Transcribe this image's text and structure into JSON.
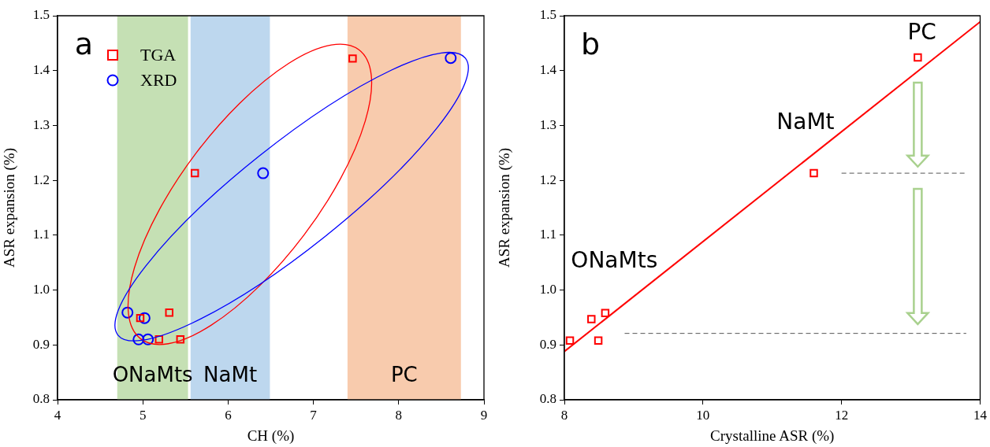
{
  "chart_data": [
    {
      "type": "scatter",
      "xlabel": "CH (%)",
      "ylabel": "ASR expansion (%)",
      "xlim": [
        4,
        9
      ],
      "xticks": [
        4,
        5,
        6,
        7,
        8,
        9
      ],
      "ylim": [
        0.8,
        1.5
      ],
      "yticks": [
        {
          "value": 0.8,
          "label": "0.8"
        },
        {
          "value": 0.9,
          "label": "0.9"
        },
        {
          "value": 1.0,
          "label": "1.0"
        },
        {
          "value": 1.1,
          "label": "1.1"
        },
        {
          "value": 1.2,
          "label": "1.2"
        },
        {
          "value": 1.3,
          "label": "1.3"
        },
        {
          "value": 1.4,
          "label": "1.4"
        },
        {
          "value": 1.5,
          "label": "1.5"
        }
      ],
      "grid": false,
      "legend": "top left",
      "series": [
        {
          "name": "TGA",
          "color": "#ff0000",
          "marker": "square",
          "x": [
            7.46,
            5.61,
            5.31,
            4.97,
            5.19,
            5.44
          ],
          "values": [
            1.422,
            1.213,
            0.959,
            0.949,
            0.91,
            0.91
          ]
        },
        {
          "name": "XRD",
          "color": "#0000ff",
          "marker": "circle",
          "x": [
            8.61,
            6.41,
            4.82,
            5.02,
            4.95,
            5.06
          ],
          "values": [
            1.423,
            1.213,
            0.959,
            0.949,
            0.91,
            0.91
          ]
        }
      ],
      "bands": [
        {
          "axis": "x",
          "from": 4.7,
          "to": 5.53,
          "label": "ONaMts",
          "color": "#c5e0b4"
        },
        {
          "axis": "x",
          "from": 5.56,
          "to": 6.49,
          "label": "NaMt",
          "color": "#bdd7ee"
        },
        {
          "axis": "x",
          "from": 7.4,
          "to": 8.73,
          "label": "PC",
          "color": "#f8cbad"
        }
      ],
      "annotations": [
        "a"
      ]
    },
    {
      "type": "scatter",
      "xlabel": "Crystalline ASR (%)",
      "ylabel": "ASR expansion (%)",
      "xlim": [
        8,
        14
      ],
      "xticks": [
        8,
        10,
        12,
        14
      ],
      "ylim": [
        0.8,
        1.5
      ],
      "yticks": [
        {
          "value": 0.8,
          "label": "0.8"
        },
        {
          "value": 0.9,
          "label": "0.9"
        },
        {
          "value": 1.0,
          "label": "1.0"
        },
        {
          "value": 1.1,
          "label": "1.1"
        },
        {
          "value": 1.2,
          "label": "1.2"
        },
        {
          "value": 1.3,
          "label": "1.3"
        },
        {
          "value": 1.4,
          "label": "1.4"
        },
        {
          "value": 1.5,
          "label": "1.5"
        }
      ],
      "grid": false,
      "marker": "square",
      "series": [
        {
          "color": "#ff0000",
          "x": [
            8.08,
            8.39,
            8.59,
            8.49,
            11.6,
            13.1
          ],
          "values": [
            0.908,
            0.947,
            0.958,
            0.908,
            1.213,
            1.424
          ]
        },
        {
          "type": "line",
          "color": "#ff0000",
          "marker": "none",
          "x": [
            8,
            14
          ],
          "values": [
            0.888,
            1.489
          ]
        },
        {
          "type": "line",
          "color": "#555555",
          "marker": "none",
          "line_style": "dashed",
          "x": [
            12,
            13.8
          ],
          "values": [
            1.213,
            1.213
          ]
        },
        {
          "type": "line",
          "color": "#555555",
          "marker": "none",
          "line_style": "dashed",
          "x": [
            8.87,
            13.8
          ],
          "values": [
            0.921,
            0.921
          ]
        }
      ],
      "annotations": [
        "b",
        "ONaMts",
        "NaMt",
        "PC"
      ]
    }
  ]
}
